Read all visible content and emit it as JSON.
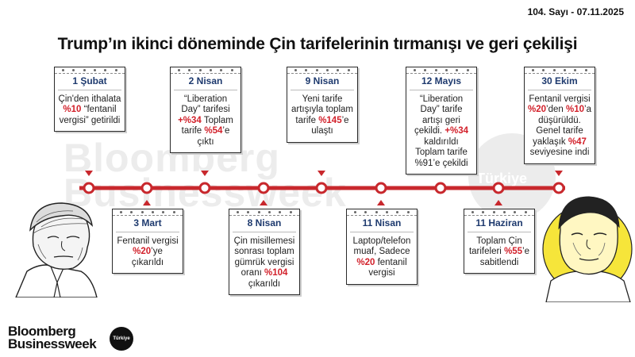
{
  "header": {
    "issue": "104. Sayı - 07.11.2025"
  },
  "title": "Trump’ın ikinci döneminde Çin tarifelerinin tırmanışı ve geri çekilişi",
  "watermark": {
    "line1": "Bloomberg",
    "line2": "Businessweek",
    "badge": "Türkiye"
  },
  "colors": {
    "accent": "#d2202a",
    "date": "#1e3a6e",
    "line": "#c8282d"
  },
  "events_top": [
    {
      "date": "1 Şubat",
      "parts": [
        {
          "t": "Çin'den ithalata "
        },
        {
          "t": "%10",
          "r": true
        },
        {
          "t": " “fentanil vergisi” getirildi"
        }
      ]
    },
    {
      "date": "2 Nisan",
      "parts": [
        {
          "t": "“Liberation Day” tarifesi "
        },
        {
          "t": "+%34",
          "r": true
        },
        {
          "t": " Toplam tarife "
        },
        {
          "t": "%54",
          "r": true
        },
        {
          "t": "’e çıktı"
        }
      ]
    },
    {
      "date": "9 Nisan",
      "parts": [
        {
          "t": "Yeni tarife artışıyla toplam tarife "
        },
        {
          "t": "%145",
          "r": true
        },
        {
          "t": "’e ulaştı"
        }
      ]
    },
    {
      "date": "12 Mayıs",
      "parts": [
        {
          "t": "“Liberation Day” tarife artışı geri çekildi. "
        },
        {
          "t": "+%34",
          "r": true
        },
        {
          "t": " kaldırıldı Toplam tarife %91’e çekildi"
        }
      ]
    },
    {
      "date": "30 Ekim",
      "parts": [
        {
          "t": "Fentanil vergisi "
        },
        {
          "t": "%20",
          "r": true
        },
        {
          "t": "’den "
        },
        {
          "t": "%10",
          "r": true
        },
        {
          "t": "’a düşürüldü. Genel tarife yaklaşık "
        },
        {
          "t": "%47",
          "r": true
        },
        {
          "t": " seviyesine indi"
        }
      ]
    }
  ],
  "events_bottom": [
    {
      "date": "3 Mart",
      "parts": [
        {
          "t": "Fentanil vergisi "
        },
        {
          "t": "%20",
          "r": true
        },
        {
          "t": "’ye çıkarıldı"
        }
      ]
    },
    {
      "date": "8 Nisan",
      "parts": [
        {
          "t": "Çin misillemesi sonrası toplam gümrük vergisi oranı "
        },
        {
          "t": "%104",
          "r": true
        },
        {
          "t": " çıkarıldı"
        }
      ]
    },
    {
      "date": "11 Nisan",
      "parts": [
        {
          "t": "Laptop/telefon muaf, Sadece "
        },
        {
          "t": "%20",
          "r": true
        },
        {
          "t": " fentanil vergisi"
        }
      ]
    },
    {
      "date": "11 Haziran",
      "parts": [
        {
          "t": "Toplam Çin tarifeleri "
        },
        {
          "t": "%55",
          "r": true
        },
        {
          "t": "’e sabitlendi"
        }
      ]
    }
  ],
  "logo": {
    "line1": "Bloomberg",
    "line2": "Businessweek",
    "badge": "Türkiye"
  }
}
